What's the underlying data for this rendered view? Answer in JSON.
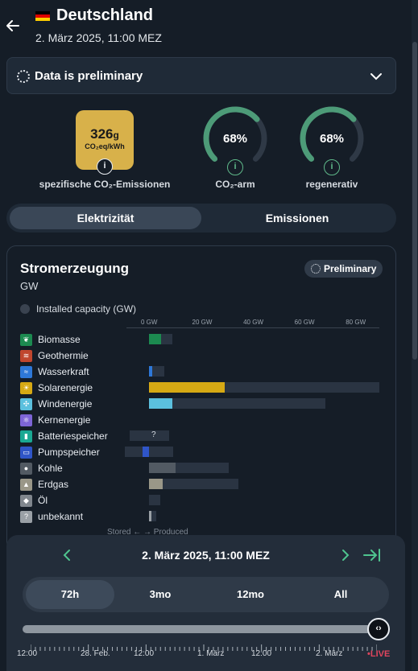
{
  "header": {
    "title": "Deutschland",
    "datetime": "2. März 2025, 11:00 MEZ",
    "flag_colors": [
      "#000000",
      "#dd0000",
      "#ffce00"
    ]
  },
  "preliminary_banner": {
    "label": "Data is preliminary"
  },
  "stats": {
    "co2_value": "326",
    "co2_value_unit": "g",
    "co2_unit": "CO₂eq/kWh",
    "co2_label": "spezifische CO₂-Emissionen",
    "co2_color": "#d8b14a",
    "low_carbon_value": "68%",
    "low_carbon_fraction": 0.68,
    "low_carbon_label": "CO₂-arm",
    "renewable_value": "68%",
    "renewable_fraction": 0.68,
    "renewable_label": "regenerativ",
    "gauge_color": "#4d9b78",
    "info_icon": "i"
  },
  "tabs": [
    {
      "label": "Elektrizität",
      "active": true
    },
    {
      "label": "Emissionen",
      "active": false
    }
  ],
  "production": {
    "title": "Stromerzeugung",
    "unit": "GW",
    "badge": "Preliminary",
    "legend_label": "Installed capacity (GW)",
    "axis_ticks": [
      "0 GW",
      "20 GW",
      "40 GW",
      "60 GW",
      "80 GW"
    ],
    "axis_tick_values": [
      0,
      20,
      40,
      60,
      80
    ],
    "axis_max": 90,
    "footer": "Stored ← → Produced",
    "sources": [
      {
        "name": "Biomasse",
        "icon": "biomass-icon",
        "color": "#1c8a50",
        "produced": 4.8,
        "capacity": 9
      },
      {
        "name": "Geothermie",
        "icon": "geothermal-icon",
        "color": "#c0462e",
        "produced": 0,
        "capacity": 0
      },
      {
        "name": "Wasserkraft",
        "icon": "hydro-icon",
        "color": "#2e78d8",
        "produced": 1.4,
        "capacity": 6
      },
      {
        "name": "Solarenergie",
        "icon": "solar-icon",
        "color": "#d6a914",
        "produced": 29.5,
        "capacity": 90
      },
      {
        "name": "Windenergie",
        "icon": "wind-icon",
        "color": "#5bc0de",
        "produced": 9,
        "capacity": 69
      },
      {
        "name": "Kernenergie",
        "icon": "nuclear-icon",
        "color": "#7e65d6",
        "produced": 0,
        "capacity": 0
      },
      {
        "name": "Batteriespeicher",
        "icon": "battery-icon",
        "color": "#1aa893",
        "produced": 0,
        "capacity": 8,
        "stored_capacity": 7.4,
        "unknown": "?"
      },
      {
        "name": "Pumpspeicher",
        "icon": "pumped-storage-icon",
        "color": "#2f55c8",
        "produced": 0,
        "capacity": 9.5,
        "stored": 2.5,
        "stored_capacity": 9.5
      },
      {
        "name": "Kohle",
        "icon": "coal-icon",
        "color": "#525a63",
        "produced": 10.5,
        "capacity": 31
      },
      {
        "name": "Erdgas",
        "icon": "gas-icon",
        "color": "#9a9788",
        "produced": 5.5,
        "capacity": 35
      },
      {
        "name": "Öl",
        "icon": "oil-icon",
        "color": "#80868d",
        "produced": 0,
        "capacity": 4.5
      },
      {
        "name": "unbekannt",
        "icon": "unknown-icon",
        "color": "#9aa0a6",
        "produced": 0.9,
        "capacity": 2.8
      }
    ]
  },
  "time_nav": {
    "date": "2. März 2025, 11:00 MEZ",
    "ranges": [
      {
        "label": "72h",
        "active": true
      },
      {
        "label": "3mo",
        "active": false
      },
      {
        "label": "12mo",
        "active": false
      },
      {
        "label": "All",
        "active": false
      }
    ],
    "timeline_labels": [
      "12:00",
      "28. Feb.",
      "12:00",
      "1. März",
      "12:00",
      "2. März"
    ],
    "live_label": "•LIVE",
    "slider_position": 1.0
  }
}
